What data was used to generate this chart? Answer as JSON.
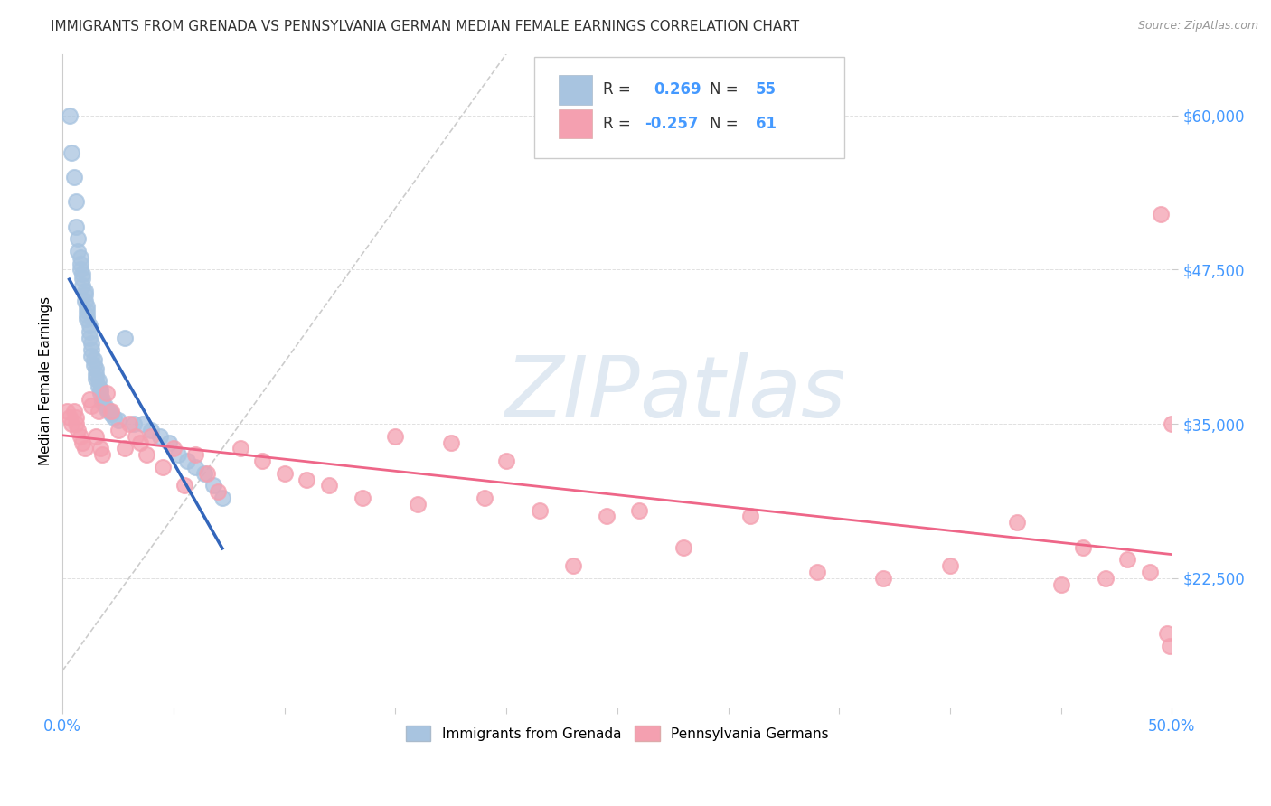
{
  "title": "IMMIGRANTS FROM GRENADA VS PENNSYLVANIA GERMAN MEDIAN FEMALE EARNINGS CORRELATION CHART",
  "source": "Source: ZipAtlas.com",
  "ylabel": "Median Female Earnings",
  "xlim": [
    0,
    0.5
  ],
  "ylim": [
    12000,
    65000
  ],
  "yticks": [
    22500,
    35000,
    47500,
    60000
  ],
  "ytick_labels": [
    "$22,500",
    "$35,000",
    "$47,500",
    "$60,000"
  ],
  "xticks": [
    0.0,
    0.05,
    0.1,
    0.15,
    0.2,
    0.25,
    0.3,
    0.35,
    0.4,
    0.45,
    0.5
  ],
  "legend_R1": "0.269",
  "legend_N1": "55",
  "legend_R2": "-0.257",
  "legend_N2": "61",
  "blue_color": "#a8c4e0",
  "pink_color": "#f4a0b0",
  "blue_line_color": "#3366bb",
  "pink_line_color": "#ee6688",
  "watermark_color": "#c8d8e8",
  "blue_x": [
    0.003,
    0.004,
    0.005,
    0.006,
    0.006,
    0.007,
    0.007,
    0.008,
    0.008,
    0.008,
    0.009,
    0.009,
    0.009,
    0.01,
    0.01,
    0.01,
    0.011,
    0.011,
    0.011,
    0.011,
    0.012,
    0.012,
    0.012,
    0.013,
    0.013,
    0.013,
    0.014,
    0.014,
    0.015,
    0.015,
    0.015,
    0.016,
    0.016,
    0.017,
    0.017,
    0.018,
    0.018,
    0.019,
    0.02,
    0.021,
    0.022,
    0.023,
    0.025,
    0.028,
    0.032,
    0.036,
    0.04,
    0.044,
    0.048,
    0.052,
    0.056,
    0.06,
    0.064,
    0.068,
    0.072
  ],
  "blue_y": [
    60000,
    57000,
    55000,
    53000,
    51000,
    50000,
    49000,
    48500,
    48000,
    47500,
    47200,
    46800,
    46200,
    45800,
    45500,
    45000,
    44500,
    44200,
    43800,
    43500,
    43000,
    42500,
    42000,
    41500,
    41000,
    40500,
    40200,
    39800,
    39500,
    39000,
    38700,
    38500,
    38000,
    37800,
    37500,
    37000,
    36800,
    36500,
    36200,
    36000,
    35800,
    35500,
    35300,
    42000,
    35000,
    35000,
    34500,
    34000,
    33500,
    32500,
    32000,
    31500,
    31000,
    30000,
    29000
  ],
  "pink_x": [
    0.002,
    0.003,
    0.004,
    0.005,
    0.006,
    0.006,
    0.007,
    0.008,
    0.009,
    0.01,
    0.012,
    0.013,
    0.015,
    0.016,
    0.017,
    0.018,
    0.02,
    0.022,
    0.025,
    0.028,
    0.03,
    0.033,
    0.035,
    0.038,
    0.04,
    0.045,
    0.05,
    0.055,
    0.06,
    0.065,
    0.07,
    0.08,
    0.09,
    0.1,
    0.11,
    0.12,
    0.135,
    0.15,
    0.16,
    0.175,
    0.19,
    0.2,
    0.215,
    0.23,
    0.245,
    0.26,
    0.28,
    0.31,
    0.34,
    0.37,
    0.4,
    0.43,
    0.45,
    0.46,
    0.47,
    0.48,
    0.49,
    0.495,
    0.498,
    0.499,
    0.5
  ],
  "pink_y": [
    36000,
    35500,
    35000,
    36000,
    35500,
    35000,
    34500,
    34000,
    33500,
    33000,
    37000,
    36500,
    34000,
    36000,
    33000,
    32500,
    37500,
    36000,
    34500,
    33000,
    35000,
    34000,
    33500,
    32500,
    34000,
    31500,
    33000,
    30000,
    32500,
    31000,
    29500,
    33000,
    32000,
    31000,
    30500,
    30000,
    29000,
    34000,
    28500,
    33500,
    29000,
    32000,
    28000,
    23500,
    27500,
    28000,
    25000,
    27500,
    23000,
    22500,
    23500,
    27000,
    22000,
    25000,
    22500,
    24000,
    23000,
    52000,
    18000,
    17000,
    35000
  ]
}
